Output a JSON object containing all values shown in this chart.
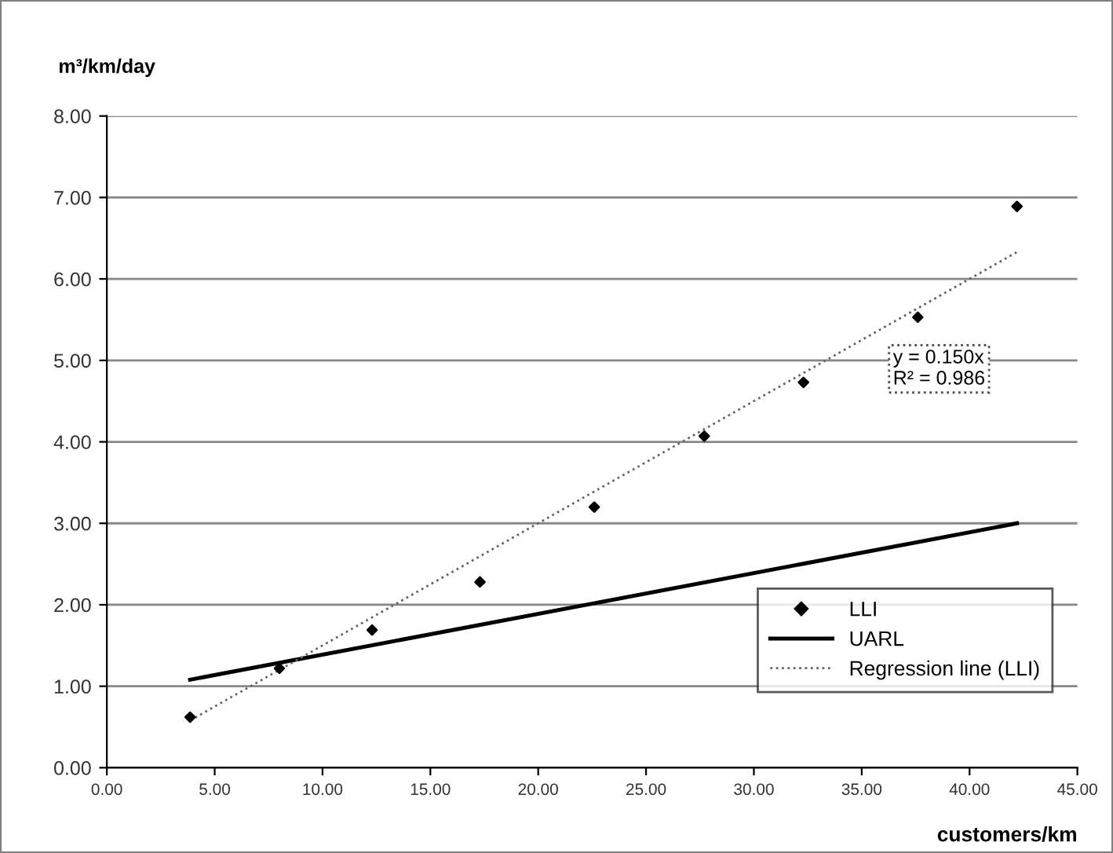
{
  "chart_data": {
    "type": "scatter",
    "ylabel": "m³/km/day",
    "xlabel": "customers/km",
    "xlim": [
      0,
      45
    ],
    "xticks": [
      {
        "value": 0,
        "label": "0.00"
      },
      {
        "value": 5,
        "label": "5.00"
      },
      {
        "value": 10,
        "label": "10.00"
      },
      {
        "value": 15,
        "label": "15.00"
      },
      {
        "value": 20,
        "label": "20.00"
      },
      {
        "value": 25,
        "label": "25.00"
      },
      {
        "value": 30,
        "label": "30.00"
      },
      {
        "value": 35,
        "label": "35.00"
      },
      {
        "value": 40,
        "label": "40.00"
      },
      {
        "value": 45,
        "label": "45.00"
      }
    ],
    "ylim": [
      0,
      8
    ],
    "yticks": [
      {
        "value": 0,
        "label": "0.00"
      },
      {
        "value": 1,
        "label": "1.00"
      },
      {
        "value": 2,
        "label": "2.00"
      },
      {
        "value": 3,
        "label": "3.00"
      },
      {
        "value": 4,
        "label": "4.00"
      },
      {
        "value": 5,
        "label": "5.00"
      },
      {
        "value": 6,
        "label": "6.00"
      },
      {
        "value": 7,
        "label": "7.00"
      },
      {
        "value": 8,
        "label": "8.00"
      }
    ],
    "grid": "y",
    "legend": "bottom right",
    "series": [
      {
        "name": "LLI",
        "marker": "diamond",
        "color": "#000000",
        "x": [
          3.86,
          8.0,
          12.3,
          17.3,
          22.6,
          27.7,
          32.3,
          37.6,
          42.2
        ],
        "values": [
          0.62,
          1.22,
          1.69,
          2.28,
          3.2,
          4.07,
          4.73,
          5.53,
          6.89
        ]
      },
      {
        "name": "UARL",
        "type": "line",
        "marker": "none",
        "line_style": "solid",
        "color": "#000000",
        "x": [
          3.86,
          42.2
        ],
        "values": [
          1.08,
          3.0
        ]
      },
      {
        "name": "Regression line (LLI)",
        "type": "line",
        "marker": "none",
        "line_style": "dotted",
        "color": "#666666",
        "x": [
          3.86,
          42.2
        ],
        "values": [
          0.58,
          6.33
        ]
      }
    ],
    "annotations": [
      "y = 0.150x\nR² = 0.986"
    ]
  }
}
